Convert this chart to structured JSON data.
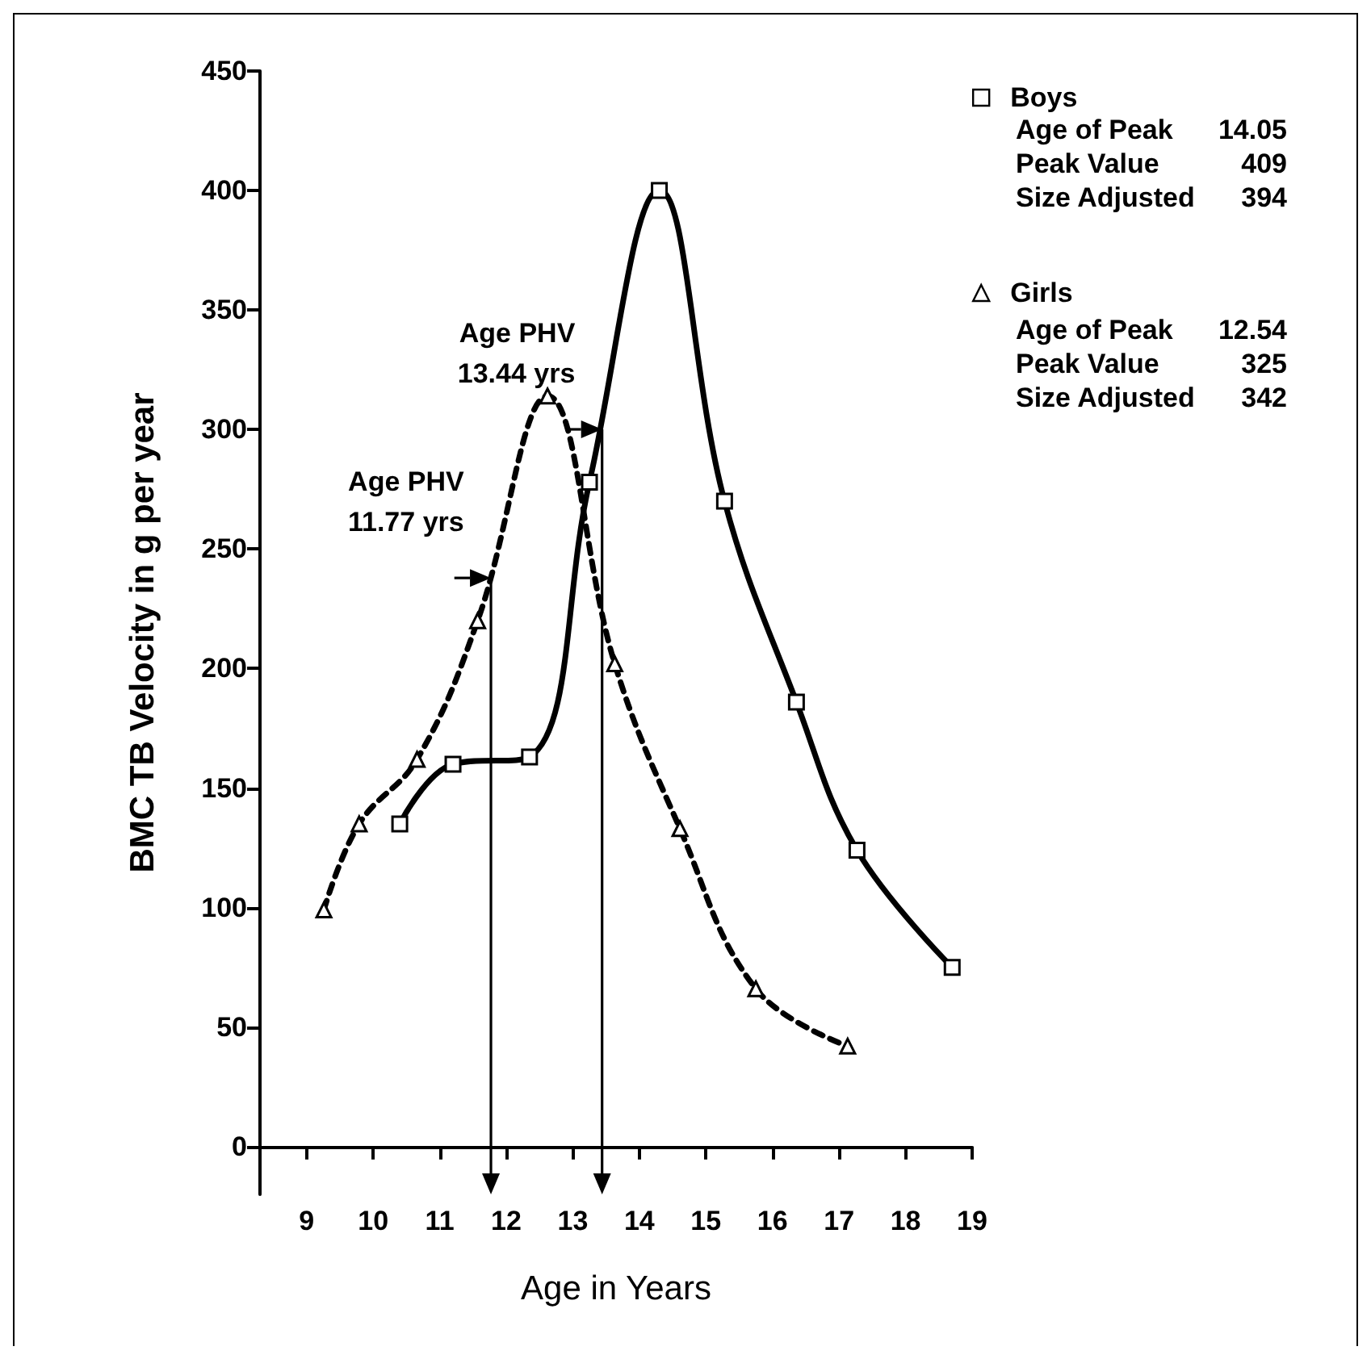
{
  "chart_data": {
    "type": "line",
    "xlabel": "Age in Years",
    "ylabel": "BMC TB Velocity in g per year",
    "xlim": [
      8.3,
      19
    ],
    "xticks": [
      9,
      10,
      11,
      12,
      13,
      14,
      15,
      16,
      17,
      18,
      19
    ],
    "ylim": [
      -20,
      450
    ],
    "yticks": [
      0,
      50,
      100,
      150,
      200,
      250,
      300,
      350,
      400,
      450
    ],
    "grid": false,
    "legend": "top right",
    "series": [
      {
        "name": "Boys",
        "color": "#000000",
        "marker": "square",
        "line_style": "solid",
        "x": [
          10.4,
          11.2,
          12.35,
          13.25,
          14.3,
          15.28,
          16.36,
          17.27,
          18.7
        ],
        "values": [
          135,
          160,
          163,
          278,
          400,
          270,
          186,
          124,
          75
        ]
      },
      {
        "name": "Girls",
        "color": "#000000",
        "marker": "triangle",
        "line_style": "dashed",
        "x": [
          9.26,
          9.79,
          10.66,
          11.57,
          12.62,
          13.63,
          14.61,
          15.75,
          17.13
        ],
        "values": [
          99,
          135,
          162,
          220,
          314,
          202,
          133,
          66,
          42
        ]
      }
    ],
    "ref_lines": [
      {
        "axis": "x",
        "value": 13.44,
        "label": "Age PHV\n13.44 yrs"
      },
      {
        "axis": "x",
        "value": 11.77,
        "label": "Age PHV\n11.77 yrs"
      }
    ],
    "annotations": [
      "Age of Peak 14.05",
      "Peak Value 409",
      "Size Adjusted 394",
      "Age of Peak 12.54",
      "Peak Value 325",
      "Size Adjusted 342"
    ]
  }
}
